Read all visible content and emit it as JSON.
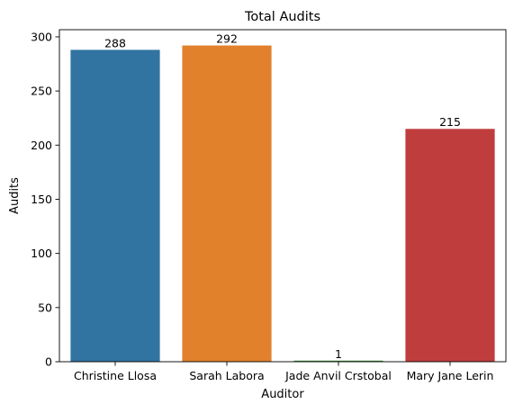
{
  "chart_data": {
    "type": "bar",
    "title": "Total Audits",
    "xlabel": "Auditor",
    "ylabel": "Audits",
    "categories": [
      "Christine Llosa",
      "Sarah Labora",
      "Jade Anvil Crstobal",
      "Mary Jane Lerin"
    ],
    "values": [
      288,
      292,
      1,
      215
    ],
    "data_labels": [
      "288",
      "292",
      "1",
      "215"
    ],
    "colors": [
      "#3274a1",
      "#e1812c",
      "#3a923a",
      "#c03d3e"
    ],
    "ylim": [
      0,
      306.6
    ],
    "yticks": [
      0,
      50,
      100,
      150,
      200,
      250,
      300
    ],
    "ytick_labels": [
      "0",
      "50",
      "100",
      "150",
      "200",
      "250",
      "300"
    ],
    "grid": false,
    "legend": "none"
  }
}
